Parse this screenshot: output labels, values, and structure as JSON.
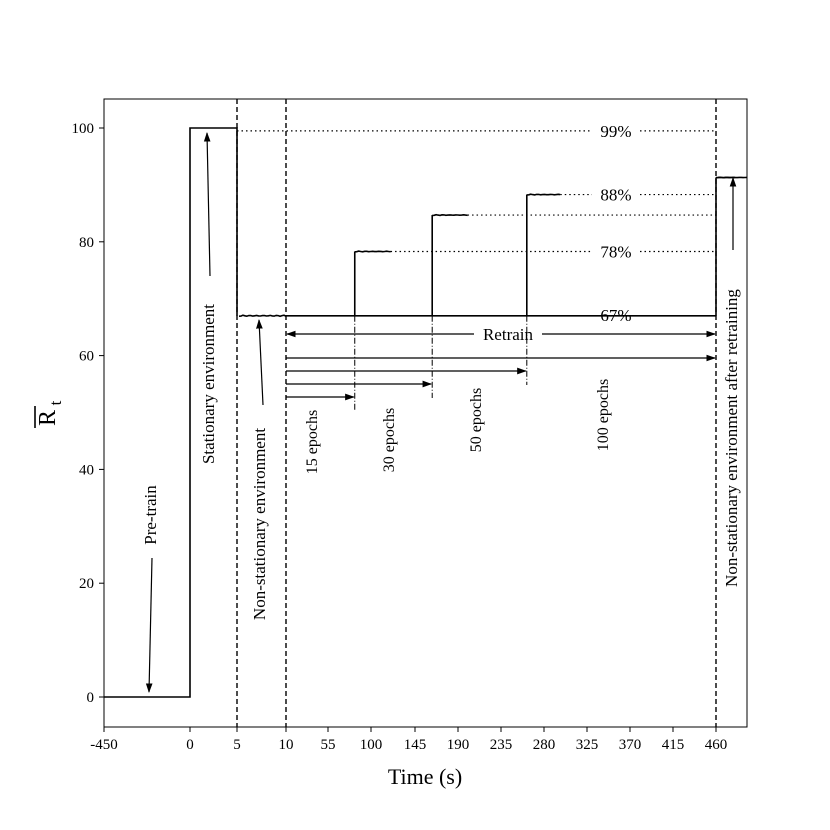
{
  "chart_data": {
    "type": "line",
    "title": "",
    "xlabel": "Time (s)",
    "ylabel_main": "R",
    "ylabel_sub": "t",
    "x_tick_labels": [
      "-450",
      "0",
      "5",
      "10",
      "55",
      "100",
      "145",
      "190",
      "235",
      "280",
      "325",
      "370",
      "415",
      "460"
    ],
    "y_ticks": [
      0,
      20,
      40,
      60,
      80,
      100
    ],
    "ylim": [
      -5,
      105
    ],
    "grid": false,
    "vlines_at_tick": [
      "5",
      "10",
      "460"
    ],
    "series": [
      {
        "style": "solid",
        "points": [
          [
            "-450",
            0
          ],
          [
            "0",
            0
          ],
          [
            "0",
            100
          ],
          [
            "5",
            100
          ],
          [
            "5",
            67
          ],
          [
            "10",
            67
          ],
          [
            "460",
            67
          ],
          [
            "460",
            91.5
          ],
          [
            "480",
            91.3
          ]
        ],
        "noisy_segments": [
          [
            "5",
            "10"
          ],
          [
            "460",
            "480"
          ]
        ]
      }
    ],
    "retrain_steps": [
      {
        "start": "10",
        "rise_at": 83,
        "level": 78.3,
        "end": 120,
        "epochs_label": "15 epochs"
      },
      {
        "start": "10",
        "rise_at": 163,
        "level": 84.7,
        "end": 200,
        "epochs_label": "30 epochs"
      },
      {
        "start": "10",
        "rise_at": 262,
        "level": 88.3,
        "end": 297,
        "epochs_label": "50 epochs"
      },
      {
        "start": "10",
        "rise_at": 460,
        "level": 91.3,
        "end": 480,
        "epochs_label": "100 epochs"
      }
    ],
    "dotted_reference_lines": [
      {
        "level": 99.5,
        "label": "99%"
      },
      {
        "level": 88.3,
        "label": "88%"
      },
      {
        "level": 84.7,
        "label": ""
      },
      {
        "level": 78.3,
        "label": "78%"
      }
    ],
    "level_label_67": "67%",
    "annotations": {
      "pretrain": "Pre-train",
      "stationary": "Stationary environment",
      "nonstationary": "Non-stationary environment",
      "after_retraining": "Non-stationary environment after retraining",
      "retrain": "Retrain"
    }
  }
}
